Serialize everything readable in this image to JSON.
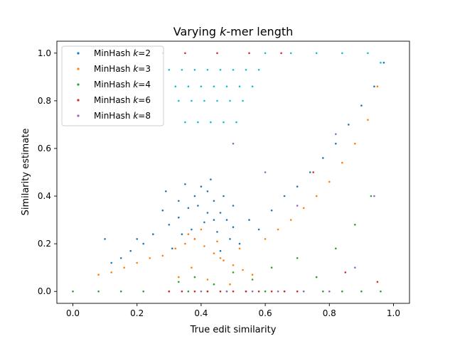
{
  "chart_data": {
    "type": "scatter",
    "title_prefix": "Varying ",
    "title_italic": "k",
    "title_suffix": "-mer length",
    "xlabel": "True edit similarity",
    "ylabel": "Similarity estimate",
    "xlim": [
      -0.05,
      1.05
    ],
    "ylim": [
      -0.05,
      1.05
    ],
    "xticks": [
      0.0,
      0.2,
      0.4,
      0.6,
      0.8,
      1.0
    ],
    "xtick_labels": [
      "0.0",
      "0.2",
      "0.4",
      "0.6",
      "0.8",
      "1.0"
    ],
    "yticks": [
      0.0,
      0.2,
      0.4,
      0.6,
      0.8,
      1.0
    ],
    "ytick_labels": [
      "0.0",
      "0.2",
      "0.4",
      "0.6",
      "0.8",
      "1.0"
    ],
    "grid": false,
    "legend_position": "top-left",
    "series": [
      {
        "name": "MinHash k=2",
        "legend_prefix": "MinHash ",
        "legend_k": "k",
        "legend_suffix": "=2",
        "color": "#1f77b4",
        "x": [
          0.3,
          0.33,
          0.36,
          0.38,
          0.4,
          0.42,
          0.44,
          0.46,
          0.48,
          0.5,
          0.34,
          0.37,
          0.41,
          0.45,
          0.49,
          0.52,
          0.28,
          0.31,
          0.39,
          0.43,
          0.47,
          0.35,
          0.42,
          0.46,
          0.38,
          0.44,
          0.5,
          0.33,
          0.29,
          0.55,
          0.58,
          0.62,
          0.66,
          0.7,
          0.74,
          0.25,
          0.22,
          0.2,
          0.18,
          0.15,
          0.12,
          0.1,
          0.78,
          0.82,
          0.86,
          0.9,
          0.94,
          0.97
        ],
        "y": [
          0.28,
          0.31,
          0.35,
          0.4,
          0.44,
          0.42,
          0.38,
          0.33,
          0.3,
          0.27,
          0.24,
          0.26,
          0.29,
          0.25,
          0.22,
          0.2,
          0.34,
          0.18,
          0.36,
          0.47,
          0.4,
          0.45,
          0.33,
          0.17,
          0.22,
          0.3,
          0.36,
          0.38,
          0.42,
          0.3,
          0.26,
          0.34,
          0.4,
          0.44,
          0.5,
          0.24,
          0.2,
          0.22,
          0.17,
          0.14,
          0.12,
          0.22,
          0.56,
          0.62,
          0.7,
          0.78,
          0.86,
          0.96
        ]
      },
      {
        "name": "MinHash k=3",
        "legend_prefix": "MinHash ",
        "legend_k": "k",
        "legend_suffix": "=3",
        "color": "#ff7f0e",
        "x": [
          0.08,
          0.12,
          0.16,
          0.2,
          0.24,
          0.28,
          0.32,
          0.35,
          0.38,
          0.41,
          0.44,
          0.47,
          0.5,
          0.53,
          0.56,
          0.33,
          0.37,
          0.42,
          0.46,
          0.49,
          0.36,
          0.4,
          0.45,
          0.52,
          0.6,
          0.64,
          0.68,
          0.72,
          0.76,
          0.8,
          0.84,
          0.88,
          0.92,
          0.95
        ],
        "y": [
          0.07,
          0.08,
          0.1,
          0.12,
          0.14,
          0.15,
          0.18,
          0.2,
          0.22,
          0.19,
          0.16,
          0.13,
          0.11,
          0.09,
          0.07,
          0.06,
          0.1,
          0.05,
          0.14,
          0.03,
          0.24,
          0.26,
          0.21,
          0.18,
          0.22,
          0.26,
          0.3,
          0.35,
          0.4,
          0.46,
          0.54,
          0.62,
          0.72,
          0.86
        ]
      },
      {
        "name": "MinHash k=4",
        "legend_prefix": "MinHash ",
        "legend_k": "k",
        "legend_suffix": "=4",
        "color": "#2ca02c",
        "x": [
          0.0,
          0.08,
          0.15,
          0.22,
          0.3,
          0.36,
          0.42,
          0.48,
          0.54,
          0.6,
          0.66,
          0.72,
          0.78,
          0.84,
          0.9,
          0.96,
          0.33,
          0.38,
          0.44,
          0.5,
          0.56,
          0.62,
          0.7,
          0.76,
          0.82,
          0.88,
          0.93
        ],
        "y": [
          0.0,
          0.0,
          0.0,
          0.0,
          0.0,
          0.0,
          0.0,
          0.0,
          0.0,
          0.0,
          0.0,
          0.0,
          0.0,
          0.0,
          0.0,
          0.0,
          0.04,
          0.06,
          0.03,
          0.08,
          0.05,
          0.1,
          0.14,
          0.06,
          0.18,
          0.28,
          0.4
        ]
      },
      {
        "name": "MinHash k=6",
        "legend_prefix": "MinHash ",
        "legend_k": "k",
        "legend_suffix": "=6",
        "color": "#d62728",
        "x": [
          0.3,
          0.34,
          0.38,
          0.42,
          0.46,
          0.5,
          0.54,
          0.58,
          0.62,
          0.66,
          0.7,
          0.28,
          0.35,
          0.45,
          0.55,
          0.65,
          0.75,
          0.85,
          0.95
        ],
        "y": [
          0.0,
          0.0,
          0.0,
          0.0,
          0.0,
          0.0,
          0.0,
          0.0,
          0.0,
          0.0,
          0.0,
          1.0,
          1.0,
          1.0,
          1.0,
          1.0,
          0.5,
          0.08,
          0.04
        ]
      },
      {
        "name": "MinHash k=8",
        "legend_prefix": "MinHash ",
        "legend_k": "k",
        "legend_suffix": "=8",
        "color": "#9467bd",
        "x": [
          0.4,
          0.48,
          0.56,
          0.64,
          0.72,
          0.8,
          0.88,
          0.94,
          0.5,
          0.6,
          0.7,
          0.82
        ],
        "y": [
          0.0,
          0.0,
          0.0,
          0.0,
          0.0,
          0.0,
          0.1,
          0.4,
          0.62,
          0.5,
          0.36,
          0.66
        ]
      },
      {
        "name": "",
        "legend_prefix": "",
        "legend_k": "",
        "legend_suffix": "",
        "color": "#17becf",
        "x": [
          0.3,
          0.34,
          0.38,
          0.42,
          0.46,
          0.5,
          0.54,
          0.58,
          0.32,
          0.36,
          0.4,
          0.44,
          0.48,
          0.52,
          0.56,
          0.33,
          0.37,
          0.41,
          0.45,
          0.49,
          0.53,
          0.35,
          0.39,
          0.43,
          0.47,
          0.51,
          0.6,
          0.68,
          0.76,
          0.84,
          0.92,
          0.96
        ],
        "y": [
          0.93,
          0.93,
          0.93,
          0.93,
          0.93,
          0.93,
          0.93,
          0.93,
          0.86,
          0.86,
          0.86,
          0.86,
          0.86,
          0.86,
          0.86,
          0.8,
          0.8,
          0.8,
          0.8,
          0.8,
          0.8,
          0.71,
          0.71,
          0.71,
          0.71,
          0.71,
          1.0,
          1.0,
          1.0,
          1.0,
          1.0,
          0.96
        ]
      }
    ]
  }
}
